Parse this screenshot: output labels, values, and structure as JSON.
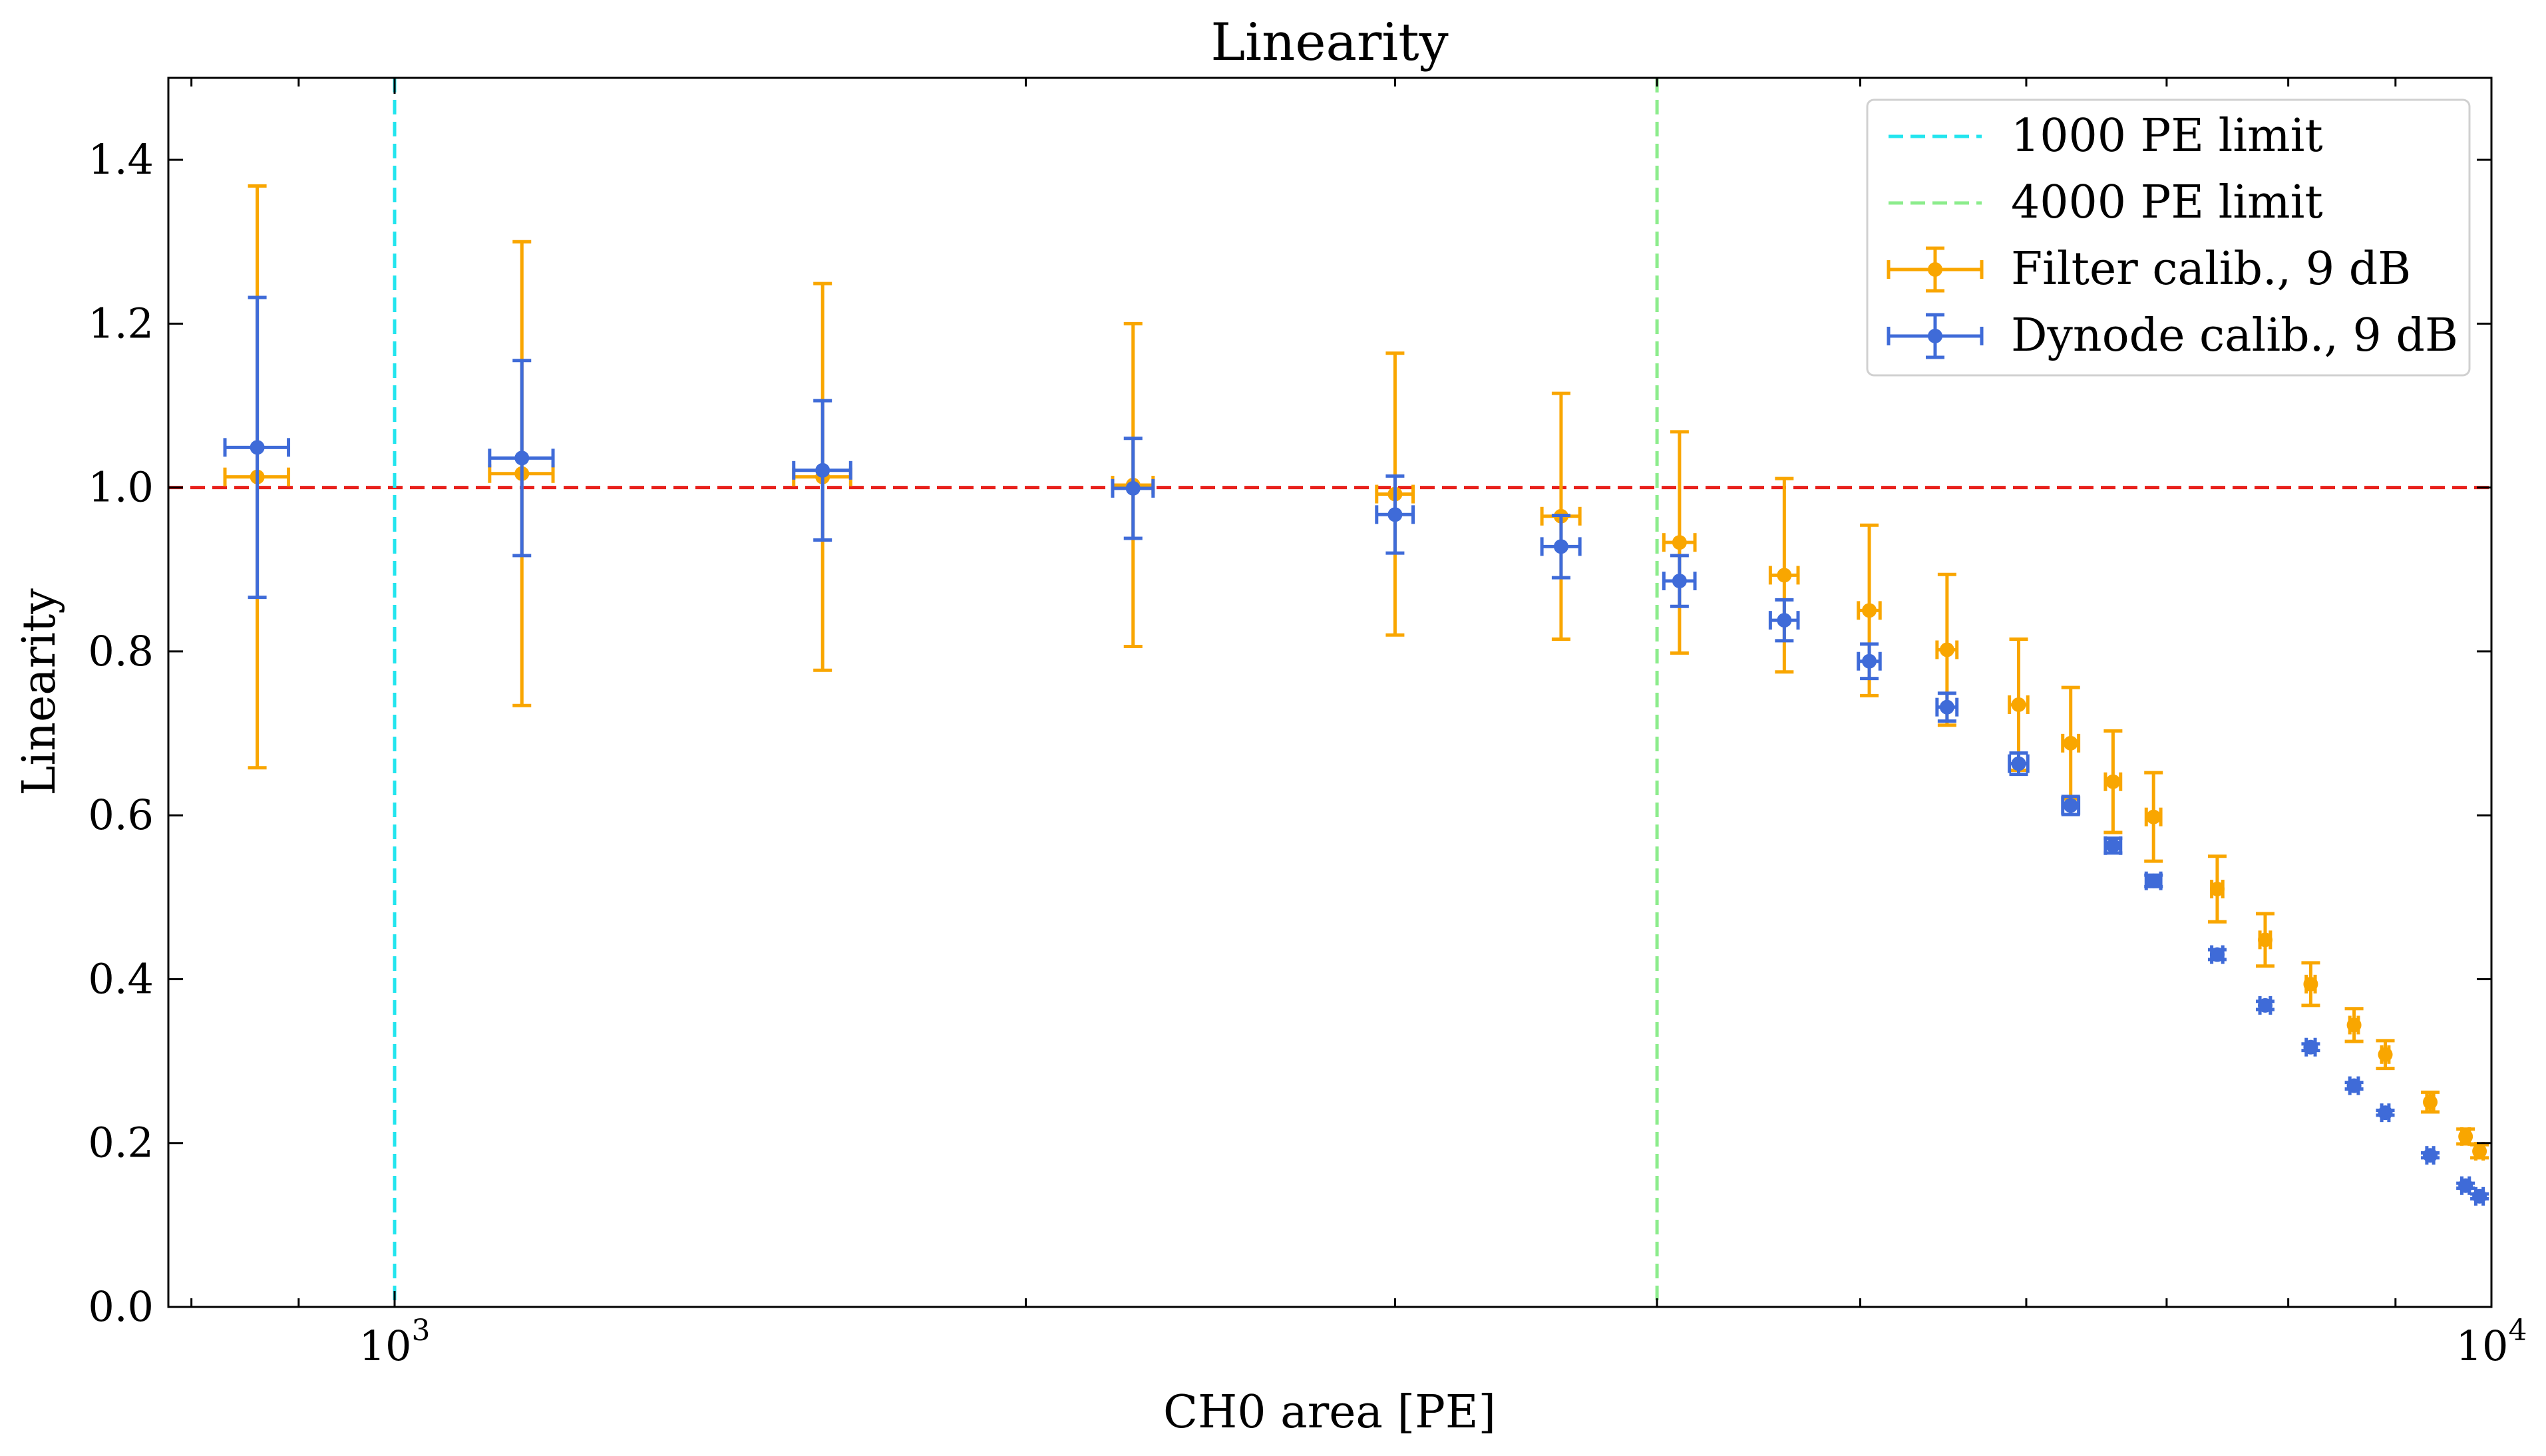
{
  "chart_data": {
    "type": "scatter",
    "title": "Linearity",
    "xlabel": "CH0 area [PE]",
    "ylabel": "Linearity",
    "xscale": "log",
    "xlim": [
      780,
      10000
    ],
    "ylim": [
      0.0,
      1.5
    ],
    "grid": false,
    "legend_position": "top-right",
    "x_major_ticks": [
      {
        "value": 1000,
        "base": "10",
        "exp": "3"
      },
      {
        "value": 10000,
        "base": "10",
        "exp": "4"
      }
    ],
    "x_minor_ticks": [
      800,
      900,
      2000,
      3000,
      4000,
      5000,
      6000,
      7000,
      8000,
      9000
    ],
    "y_ticks": [
      {
        "value": 0.0,
        "label": "0.0"
      },
      {
        "value": 0.2,
        "label": "0.2"
      },
      {
        "value": 0.4,
        "label": "0.4"
      },
      {
        "value": 0.6,
        "label": "0.6"
      },
      {
        "value": 0.8,
        "label": "0.8"
      },
      {
        "value": 1.0,
        "label": "1.0"
      },
      {
        "value": 1.2,
        "label": "1.2"
      },
      {
        "value": 1.4,
        "label": "1.4"
      }
    ],
    "reference_lines": [
      {
        "orientation": "horizontal",
        "value": 1.0,
        "color": "#e8211c",
        "style": "dashed"
      },
      {
        "orientation": "vertical",
        "value": 1000,
        "color": "#22e5ee",
        "style": "dashed",
        "name": "1000 PE limit"
      },
      {
        "orientation": "vertical",
        "value": 4000,
        "color": "#8cec8c",
        "style": "dashed",
        "name": "4000 PE limit"
      }
    ],
    "series": [
      {
        "name": "Filter calib., 9 dB",
        "color": "#f9a600",
        "points": [
          {
            "x": 860,
            "y": 1.013,
            "yerr": 0.355,
            "xerr": 30
          },
          {
            "x": 1150,
            "y": 1.017,
            "yerr": 0.283,
            "xerr": 40
          },
          {
            "x": 1600,
            "y": 1.013,
            "yerr": 0.236,
            "xerr": 50
          },
          {
            "x": 2250,
            "y": 1.003,
            "yerr": 0.197,
            "xerr": 50
          },
          {
            "x": 3000,
            "y": 0.992,
            "yerr": 0.172,
            "xerr": 60
          },
          {
            "x": 3600,
            "y": 0.965,
            "yerr": 0.15,
            "xerr": 75
          },
          {
            "x": 4100,
            "y": 0.933,
            "yerr": 0.135,
            "xerr": 70
          },
          {
            "x": 4600,
            "y": 0.893,
            "yerr": 0.118,
            "xerr": 70
          },
          {
            "x": 5050,
            "y": 0.85,
            "yerr": 0.104,
            "xerr": 60
          },
          {
            "x": 5500,
            "y": 0.802,
            "yerr": 0.092,
            "xerr": 60
          },
          {
            "x": 5950,
            "y": 0.735,
            "yerr": 0.08,
            "xerr": 60
          },
          {
            "x": 6300,
            "y": 0.688,
            "yerr": 0.068,
            "xerr": 55
          },
          {
            "x": 6600,
            "y": 0.641,
            "yerr": 0.062,
            "xerr": 55
          },
          {
            "x": 6900,
            "y": 0.598,
            "yerr": 0.054,
            "xerr": 55
          },
          {
            "x": 7400,
            "y": 0.51,
            "yerr": 0.04,
            "xerr": 45
          },
          {
            "x": 7800,
            "y": 0.448,
            "yerr": 0.032,
            "xerr": 45
          },
          {
            "x": 8200,
            "y": 0.394,
            "yerr": 0.026,
            "xerr": 40
          },
          {
            "x": 8600,
            "y": 0.344,
            "yerr": 0.02,
            "xerr": 40
          },
          {
            "x": 8900,
            "y": 0.308,
            "yerr": 0.017,
            "xerr": 35
          },
          {
            "x": 9350,
            "y": 0.25,
            "yerr": 0.012,
            "xerr": 35
          },
          {
            "x": 9720,
            "y": 0.208,
            "yerr": 0.009,
            "xerr": 40
          },
          {
            "x": 9870,
            "y": 0.19,
            "yerr": 0.008,
            "xerr": 40
          }
        ]
      },
      {
        "name": "Dynode calib., 9 dB",
        "color": "#3f6bd8",
        "points": [
          {
            "x": 860,
            "y": 1.049,
            "yerr": 0.183,
            "xerr": 30
          },
          {
            "x": 1150,
            "y": 1.036,
            "yerr": 0.119,
            "xerr": 40
          },
          {
            "x": 1600,
            "y": 1.021,
            "yerr": 0.085,
            "xerr": 50
          },
          {
            "x": 2250,
            "y": 0.999,
            "yerr": 0.061,
            "xerr": 50
          },
          {
            "x": 3000,
            "y": 0.967,
            "yerr": 0.047,
            "xerr": 60
          },
          {
            "x": 3600,
            "y": 0.928,
            "yerr": 0.038,
            "xerr": 75
          },
          {
            "x": 4100,
            "y": 0.886,
            "yerr": 0.031,
            "xerr": 70
          },
          {
            "x": 4600,
            "y": 0.838,
            "yerr": 0.025,
            "xerr": 70
          },
          {
            "x": 5050,
            "y": 0.788,
            "yerr": 0.021,
            "xerr": 60
          },
          {
            "x": 5500,
            "y": 0.732,
            "yerr": 0.017,
            "xerr": 60
          },
          {
            "x": 5950,
            "y": 0.663,
            "yerr": 0.013,
            "xerr": 60
          },
          {
            "x": 6300,
            "y": 0.612,
            "yerr": 0.011,
            "xerr": 55
          },
          {
            "x": 6600,
            "y": 0.563,
            "yerr": 0.009,
            "xerr": 55
          },
          {
            "x": 6900,
            "y": 0.52,
            "yerr": 0.007,
            "xerr": 55
          },
          {
            "x": 7400,
            "y": 0.43,
            "yerr": 0.006,
            "xerr": 45
          },
          {
            "x": 7800,
            "y": 0.368,
            "yerr": 0.005,
            "xerr": 45
          },
          {
            "x": 8200,
            "y": 0.317,
            "yerr": 0.004,
            "xerr": 40
          },
          {
            "x": 8600,
            "y": 0.27,
            "yerr": 0.004,
            "xerr": 40
          },
          {
            "x": 8900,
            "y": 0.237,
            "yerr": 0.003,
            "xerr": 35
          },
          {
            "x": 9350,
            "y": 0.185,
            "yerr": 0.003,
            "xerr": 35
          },
          {
            "x": 9720,
            "y": 0.148,
            "yerr": 0.003,
            "xerr": 40
          },
          {
            "x": 9870,
            "y": 0.135,
            "yerr": 0.003,
            "xerr": 40
          }
        ]
      }
    ],
    "legend": [
      {
        "label": "1000 PE limit",
        "kind": "dashed-line",
        "color": "#22e5ee"
      },
      {
        "label": "4000 PE limit",
        "kind": "dashed-line",
        "color": "#8cec8c"
      },
      {
        "label": "Filter calib., 9 dB",
        "kind": "errorbar",
        "color": "#f9a600"
      },
      {
        "label": "Dynode calib., 9 dB",
        "kind": "errorbar",
        "color": "#3f6bd8"
      }
    ]
  }
}
